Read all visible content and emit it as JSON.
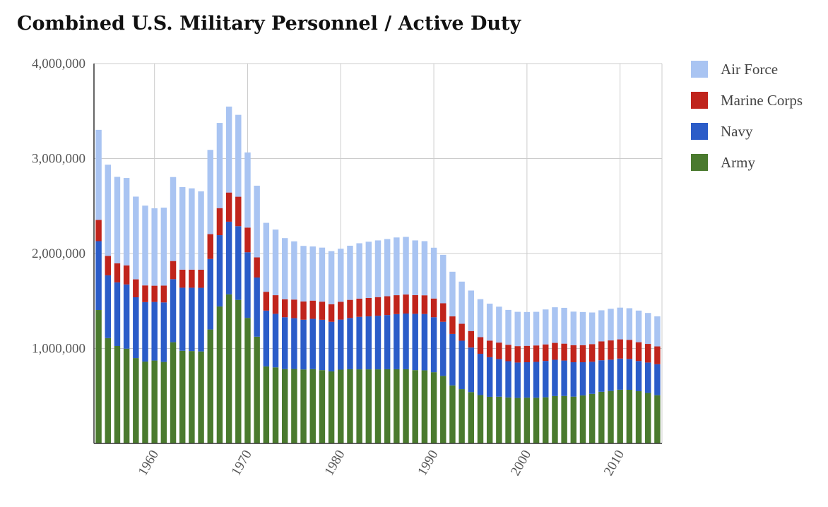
{
  "chart_data": {
    "type": "bar",
    "stacked": true,
    "title": "Combined U.S. Military Personnel / Active Duty",
    "xlabel": "",
    "ylabel": "",
    "ylim": [
      0,
      4000000
    ],
    "y_ticks": [
      "1,000,000",
      "2,000,000",
      "3,000,000",
      "4,000,000"
    ],
    "y_tick_values": [
      1000000,
      2000000,
      3000000,
      4000000
    ],
    "x_ticks": [
      "1960",
      "1970",
      "1980",
      "1990",
      "2000",
      "2010"
    ],
    "x_tick_values": [
      1960,
      1970,
      1980,
      1990,
      2000,
      2010
    ],
    "grid": true,
    "legend_position": "right",
    "categories": [
      1954,
      1955,
      1956,
      1957,
      1958,
      1959,
      1960,
      1961,
      1962,
      1963,
      1964,
      1965,
      1966,
      1967,
      1968,
      1969,
      1970,
      1971,
      1972,
      1973,
      1974,
      1975,
      1976,
      1977,
      1978,
      1979,
      1980,
      1981,
      1982,
      1983,
      1984,
      1985,
      1986,
      1987,
      1988,
      1989,
      1990,
      1991,
      1992,
      1993,
      1994,
      1995,
      1996,
      1997,
      1998,
      1999,
      2000,
      2001,
      2002,
      2003,
      2004,
      2005,
      2006,
      2007,
      2008,
      2009,
      2010,
      2011,
      2012,
      2013,
      2014
    ],
    "series": [
      {
        "name": "Army",
        "color": "#4a7a2e",
        "values": [
          1405000,
          1109000,
          1026000,
          998000,
          899000,
          862000,
          873000,
          858000,
          1066000,
          976000,
          973000,
          969000,
          1200000,
          1442000,
          1570000,
          1512000,
          1322000,
          1124000,
          811000,
          801000,
          783000,
          784000,
          779000,
          782000,
          772000,
          759000,
          777000,
          781000,
          780000,
          780000,
          780000,
          781000,
          781000,
          781000,
          772000,
          770000,
          750000,
          711000,
          611000,
          572000,
          541000,
          509000,
          491000,
          492000,
          484000,
          479000,
          482000,
          481000,
          486000,
          499000,
          500000,
          493000,
          505000,
          522000,
          544000,
          553000,
          566000,
          565000,
          550000,
          532000,
          508000
        ]
      },
      {
        "name": "Navy",
        "color": "#2b5cc8",
        "values": [
          725000,
          661000,
          670000,
          676000,
          640000,
          626000,
          617000,
          627000,
          664000,
          664000,
          667000,
          670000,
          743000,
          751000,
          765000,
          776000,
          691000,
          623000,
          588000,
          564000,
          546000,
          535000,
          524000,
          530000,
          530000,
          522000,
          527000,
          540000,
          553000,
          558000,
          565000,
          571000,
          581000,
          587000,
          593000,
          593000,
          579000,
          570000,
          542000,
          510000,
          469000,
          435000,
          417000,
          396000,
          382000,
          373000,
          373000,
          378000,
          383000,
          382000,
          373000,
          362000,
          350000,
          338000,
          332000,
          329000,
          328000,
          325000,
          318000,
          320000,
          326000
        ]
      },
      {
        "name": "Marine Corps",
        "color": "#c0241c",
        "values": [
          224000,
          205000,
          201000,
          201000,
          189000,
          176000,
          171000,
          177000,
          191000,
          190000,
          190000,
          190000,
          261000,
          285000,
          307000,
          310000,
          260000,
          212000,
          198000,
          196000,
          189000,
          196000,
          192000,
          192000,
          191000,
          185000,
          188000,
          191000,
          192000,
          194000,
          196000,
          198000,
          199000,
          200000,
          197000,
          197000,
          197000,
          195000,
          185000,
          178000,
          174000,
          175000,
          175000,
          174000,
          173000,
          173000,
          173000,
          173000,
          174000,
          178000,
          178000,
          180000,
          180000,
          186000,
          199000,
          203000,
          202000,
          201000,
          198000,
          196000,
          188000
        ]
      },
      {
        "name": "Air Force",
        "color": "#a9c4f2",
        "values": [
          948000,
          960000,
          910000,
          920000,
          871000,
          840000,
          815000,
          821000,
          884000,
          869000,
          856000,
          825000,
          887000,
          897000,
          905000,
          862000,
          791000,
          755000,
          726000,
          691000,
          644000,
          613000,
          585000,
          570000,
          569000,
          559000,
          558000,
          570000,
          583000,
          592000,
          597000,
          602000,
          608000,
          607000,
          576000,
          570000,
          535000,
          510000,
          470000,
          444000,
          426000,
          400000,
          389000,
          378000,
          367000,
          361000,
          356000,
          354000,
          368000,
          375000,
          377000,
          353000,
          349000,
          333000,
          327000,
          333000,
          334000,
          333000,
          333000,
          326000,
          316000
        ]
      }
    ]
  }
}
